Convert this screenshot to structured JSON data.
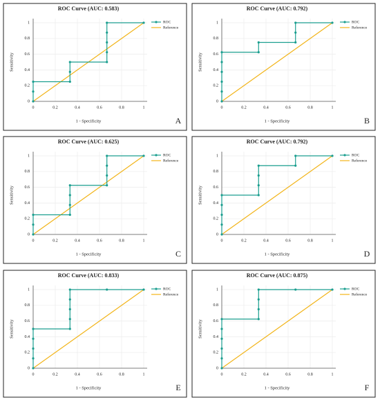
{
  "chart_data": [
    {
      "type": "line",
      "title": "ROC Curve (AUC: 0.583)",
      "xlabel": "1 - Specificity",
      "ylabel": "Sensitivity",
      "panel_label": "A",
      "xlim": [
        0,
        1
      ],
      "ylim": [
        0,
        1
      ],
      "xticks": [
        0,
        0.2,
        0.4,
        0.6,
        0.8,
        1
      ],
      "yticks": [
        0,
        0.2,
        0.4,
        0.6,
        0.8,
        1
      ],
      "grid": true,
      "legend": "upper right",
      "series": [
        {
          "name": "ROC",
          "color": "#1a9e8f",
          "x": [
            0,
            0,
            0,
            0.333,
            0.333,
            0.333,
            0.667,
            0.667,
            0.667,
            0.667,
            0.667,
            1
          ],
          "values": [
            0,
            0.125,
            0.25,
            0.25,
            0.375,
            0.5,
            0.5,
            0.625,
            0.75,
            0.875,
            1,
            1
          ]
        },
        {
          "name": "Reference",
          "color": "#f2b418",
          "x": [
            0,
            1
          ],
          "values": [
            0,
            1
          ]
        }
      ]
    },
    {
      "type": "line",
      "title": "ROC Curve (AUC: 0.792)",
      "xlabel": "1 - Specificity",
      "ylabel": "Sensitivity",
      "panel_label": "B",
      "xlim": [
        0,
        1
      ],
      "ylim": [
        0,
        1
      ],
      "xticks": [
        0,
        0.2,
        0.4,
        0.6,
        0.8,
        1
      ],
      "yticks": [
        0,
        0.2,
        0.4,
        0.6,
        0.8,
        1
      ],
      "grid": true,
      "legend": "upper right",
      "series": [
        {
          "name": "ROC",
          "color": "#1a9e8f",
          "x": [
            0,
            0,
            0,
            0,
            0,
            0,
            0.333,
            0.333,
            0.667,
            0.667,
            0.667,
            1
          ],
          "values": [
            0,
            0.125,
            0.25,
            0.375,
            0.5,
            0.625,
            0.625,
            0.75,
            0.75,
            0.875,
            1,
            1
          ]
        },
        {
          "name": "Reference",
          "color": "#f2b418",
          "x": [
            0,
            1
          ],
          "values": [
            0,
            1
          ]
        }
      ]
    },
    {
      "type": "line",
      "title": "ROC Curve (AUC: 0.625)",
      "xlabel": "1 - Specificity",
      "ylabel": "Sensitivity",
      "panel_label": "C",
      "xlim": [
        0,
        1
      ],
      "ylim": [
        0,
        1
      ],
      "xticks": [
        0,
        0.2,
        0.4,
        0.6,
        0.8,
        1
      ],
      "yticks": [
        0,
        0.2,
        0.4,
        0.6,
        0.8,
        1
      ],
      "grid": true,
      "legend": "upper right",
      "series": [
        {
          "name": "ROC",
          "color": "#1a9e8f",
          "x": [
            0,
            0,
            0,
            0.333,
            0.333,
            0.333,
            0.333,
            0.667,
            0.667,
            0.667,
            0.667,
            1
          ],
          "values": [
            0,
            0.125,
            0.25,
            0.25,
            0.375,
            0.5,
            0.625,
            0.625,
            0.75,
            0.875,
            1,
            1
          ]
        },
        {
          "name": "Reference",
          "color": "#f2b418",
          "x": [
            0,
            1
          ],
          "values": [
            0,
            1
          ]
        }
      ]
    },
    {
      "type": "line",
      "title": "ROC Curve (AUC: 0.792)",
      "xlabel": "1 - Specificity",
      "ylabel": "Sensitivity",
      "panel_label": "D",
      "xlim": [
        0,
        1
      ],
      "ylim": [
        0,
        1
      ],
      "xticks": [
        0,
        0.2,
        0.4,
        0.6,
        0.8,
        1
      ],
      "yticks": [
        0,
        0.2,
        0.4,
        0.6,
        0.8,
        1
      ],
      "grid": true,
      "legend": "upper right",
      "series": [
        {
          "name": "ROC",
          "color": "#1a9e8f",
          "x": [
            0,
            0,
            0,
            0,
            0,
            0.333,
            0.333,
            0.333,
            0.333,
            0.667,
            0.667,
            1
          ],
          "values": [
            0,
            0.125,
            0.25,
            0.375,
            0.5,
            0.5,
            0.625,
            0.75,
            0.875,
            0.875,
            1,
            1
          ]
        },
        {
          "name": "Reference",
          "color": "#f2b418",
          "x": [
            0,
            1
          ],
          "values": [
            0,
            1
          ]
        }
      ]
    },
    {
      "type": "line",
      "title": "ROC Curve (AUC: 0.833)",
      "xlabel": "1 - Specificity",
      "ylabel": "Sensitivity",
      "panel_label": "E",
      "xlim": [
        0,
        1
      ],
      "ylim": [
        0,
        1
      ],
      "xticks": [
        0,
        0.2,
        0.4,
        0.6,
        0.8,
        1
      ],
      "yticks": [
        0,
        0.2,
        0.4,
        0.6,
        0.8,
        1
      ],
      "grid": true,
      "legend": "upper right",
      "series": [
        {
          "name": "ROC",
          "color": "#1a9e8f",
          "x": [
            0,
            0,
            0,
            0,
            0,
            0.333,
            0.333,
            0.333,
            0.333,
            0.333,
            0.667,
            1
          ],
          "values": [
            0,
            0.125,
            0.25,
            0.375,
            0.5,
            0.5,
            0.625,
            0.75,
            0.875,
            1,
            1,
            1
          ]
        },
        {
          "name": "Reference",
          "color": "#f2b418",
          "x": [
            0,
            1
          ],
          "values": [
            0,
            1
          ]
        }
      ]
    },
    {
      "type": "line",
      "title": "ROC Curve (AUC: 0.875)",
      "xlabel": "1 - Specificity",
      "ylabel": "Sensitivity",
      "panel_label": "F",
      "xlim": [
        0,
        1
      ],
      "ylim": [
        0,
        1
      ],
      "xticks": [
        0,
        0.2,
        0.4,
        0.6,
        0.8,
        1
      ],
      "yticks": [
        0,
        0.2,
        0.4,
        0.6,
        0.8,
        1
      ],
      "grid": true,
      "legend": "upper right",
      "series": [
        {
          "name": "ROC",
          "color": "#1a9e8f",
          "x": [
            0,
            0,
            0,
            0,
            0,
            0,
            0.333,
            0.333,
            0.333,
            0.333,
            0.667,
            1
          ],
          "values": [
            0,
            0.125,
            0.25,
            0.375,
            0.5,
            0.625,
            0.625,
            0.75,
            0.875,
            1,
            1,
            1
          ]
        },
        {
          "name": "Reference",
          "color": "#f2b418",
          "x": [
            0,
            1
          ],
          "values": [
            0,
            1
          ]
        }
      ]
    }
  ]
}
